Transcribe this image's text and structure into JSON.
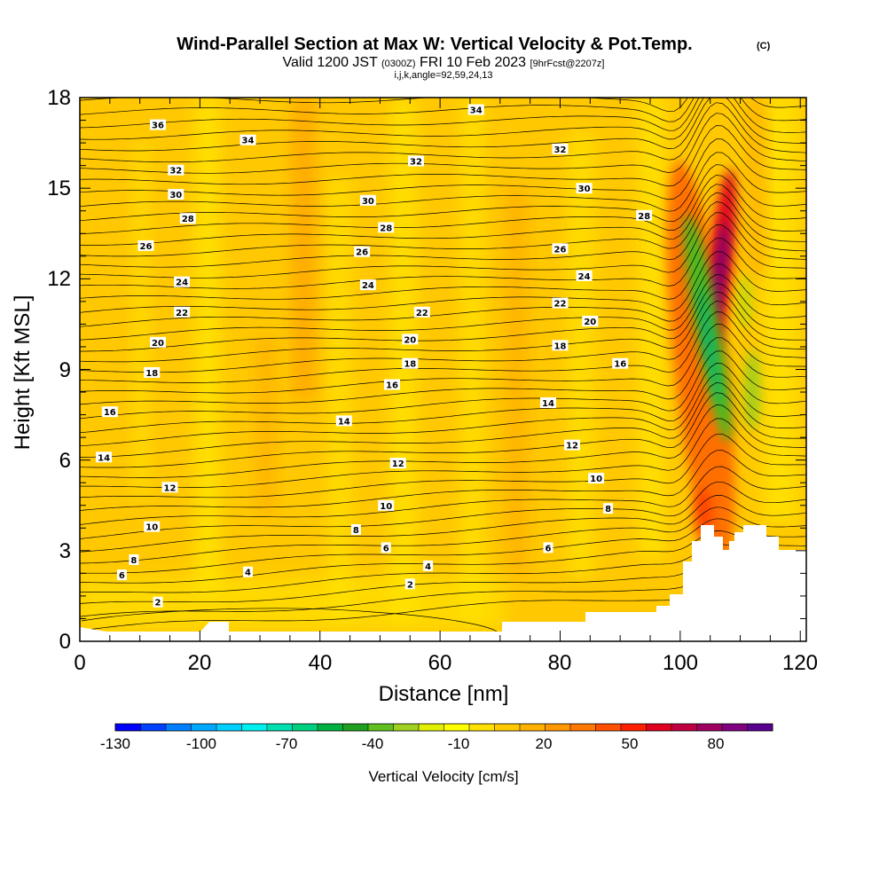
{
  "chart_data": {
    "type": "heatmap",
    "title": "Wind-Parallel Section at Max W: Vertical Velocity & Pot.Temp.",
    "title_mark": "(C)",
    "subtitle_parts": [
      "Valid 1200 JST",
      "(0300Z)",
      "FRI 10 Feb 2023",
      "[9hrFcst@2207z]"
    ],
    "subtitle2": "i,j,k,angle=92,59,24,13",
    "xlabel": "Distance [nm]",
    "ylabel": "Height [Kft MSL]",
    "xlim": [
      0,
      121
    ],
    "ylim": [
      0,
      18
    ],
    "x_ticks": [
      "0",
      "20",
      "40",
      "60",
      "80",
      "100",
      "120"
    ],
    "y_ticks": [
      "0",
      "3",
      "6",
      "9",
      "12",
      "15",
      "18"
    ],
    "colorbar": {
      "title": "Vertical Velocity [cm/s]",
      "labels": [
        "-130",
        "-100",
        "-70",
        "-40",
        "-10",
        "20",
        "50",
        "80"
      ],
      "colors": [
        "#0000ff",
        "#0040ff",
        "#0080ff",
        "#00a8ff",
        "#00d0ff",
        "#00f0f0",
        "#00e0b0",
        "#00d080",
        "#00b040",
        "#20a020",
        "#60c020",
        "#a0d020",
        "#e0f000",
        "#ffff00",
        "#ffe000",
        "#ffc800",
        "#ffb000",
        "#ff9800",
        "#ff7800",
        "#ff5000",
        "#ff2000",
        "#e00020",
        "#c00040",
        "#a00060",
        "#800080",
        "#5a0090"
      ]
    },
    "background_color": "#ffc800",
    "contour_labels": [
      {
        "t": "36",
        "x": 13,
        "y": 17.1
      },
      {
        "t": "34",
        "x": 28,
        "y": 16.6
      },
      {
        "t": "34",
        "x": 66,
        "y": 17.6
      },
      {
        "t": "32",
        "x": 16,
        "y": 15.6
      },
      {
        "t": "32",
        "x": 56,
        "y": 15.9
      },
      {
        "t": "32",
        "x": 80,
        "y": 16.3
      },
      {
        "t": "30",
        "x": 16,
        "y": 14.8
      },
      {
        "t": "30",
        "x": 48,
        "y": 14.6
      },
      {
        "t": "30",
        "x": 84,
        "y": 15.0
      },
      {
        "t": "28",
        "x": 18,
        "y": 14.0
      },
      {
        "t": "28",
        "x": 51,
        "y": 13.7
      },
      {
        "t": "28",
        "x": 94,
        "y": 14.1
      },
      {
        "t": "26",
        "x": 11,
        "y": 13.1
      },
      {
        "t": "26",
        "x": 47,
        "y": 12.9
      },
      {
        "t": "26",
        "x": 80,
        "y": 13.0
      },
      {
        "t": "24",
        "x": 17,
        "y": 11.9
      },
      {
        "t": "24",
        "x": 48,
        "y": 11.8
      },
      {
        "t": "24",
        "x": 84,
        "y": 12.1
      },
      {
        "t": "22",
        "x": 17,
        "y": 10.9
      },
      {
        "t": "22",
        "x": 57,
        "y": 10.9
      },
      {
        "t": "22",
        "x": 80,
        "y": 11.2
      },
      {
        "t": "20",
        "x": 13,
        "y": 9.9
      },
      {
        "t": "20",
        "x": 55,
        "y": 10.0
      },
      {
        "t": "20",
        "x": 85,
        "y": 10.6
      },
      {
        "t": "18",
        "x": 12,
        "y": 8.9
      },
      {
        "t": "18",
        "x": 55,
        "y": 9.2
      },
      {
        "t": "18",
        "x": 80,
        "y": 9.8
      },
      {
        "t": "16",
        "x": 5,
        "y": 7.6
      },
      {
        "t": "16",
        "x": 52,
        "y": 8.5
      },
      {
        "t": "16",
        "x": 90,
        "y": 9.2
      },
      {
        "t": "14",
        "x": 4,
        "y": 6.1
      },
      {
        "t": "14",
        "x": 44,
        "y": 7.3
      },
      {
        "t": "14",
        "x": 78,
        "y": 7.9
      },
      {
        "t": "12",
        "x": 15,
        "y": 5.1
      },
      {
        "t": "12",
        "x": 53,
        "y": 5.9
      },
      {
        "t": "12",
        "x": 82,
        "y": 6.5
      },
      {
        "t": "10",
        "x": 12,
        "y": 3.8
      },
      {
        "t": "10",
        "x": 51,
        "y": 4.5
      },
      {
        "t": "10",
        "x": 86,
        "y": 5.4
      },
      {
        "t": "8",
        "x": 9,
        "y": 2.7
      },
      {
        "t": "8",
        "x": 46,
        "y": 3.7
      },
      {
        "t": "8",
        "x": 88,
        "y": 4.4
      },
      {
        "t": "6",
        "x": 7,
        "y": 2.2
      },
      {
        "t": "6",
        "x": 51,
        "y": 3.1
      },
      {
        "t": "6",
        "x": 78,
        "y": 3.1
      },
      {
        "t": "4",
        "x": 28,
        "y": 2.3
      },
      {
        "t": "4",
        "x": 58,
        "y": 2.5
      },
      {
        "t": "2",
        "x": 13,
        "y": 1.3
      },
      {
        "t": "2",
        "x": 55,
        "y": 1.9
      }
    ]
  }
}
